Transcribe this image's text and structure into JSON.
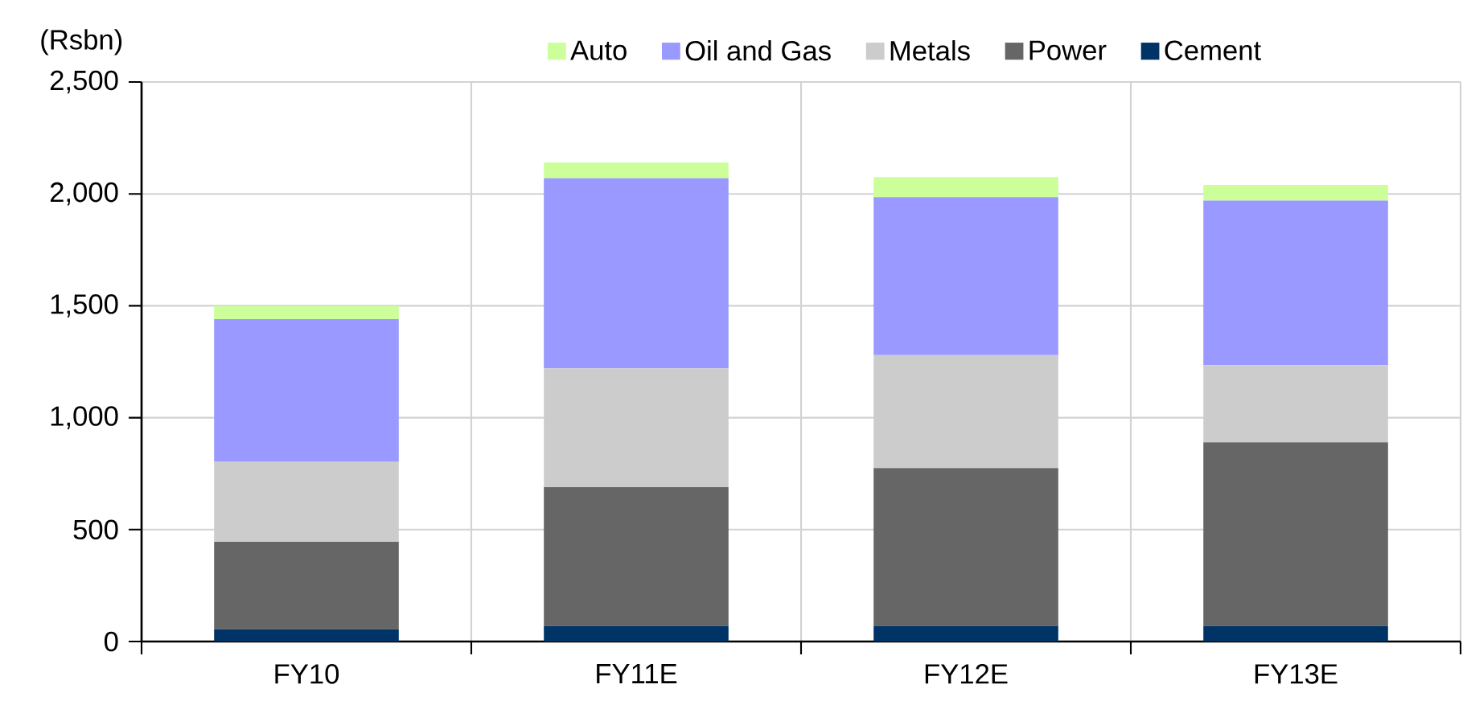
{
  "chart_data": {
    "type": "bar",
    "stacked": true,
    "ylabel": "(Rsbn)",
    "categories": [
      "FY10",
      "FY11E",
      "FY12E",
      "FY13E"
    ],
    "series": [
      {
        "name": "Cement",
        "color": "#003366",
        "values": [
          55,
          70,
          70,
          70
        ]
      },
      {
        "name": "Power",
        "color": "#666666",
        "values": [
          390,
          620,
          705,
          820
        ]
      },
      {
        "name": "Metals",
        "color": "#cccccc",
        "values": [
          360,
          530,
          505,
          345
        ]
      },
      {
        "name": "Oil and Gas",
        "color": "#9999ff",
        "values": [
          635,
          850,
          705,
          735
        ]
      },
      {
        "name": "Auto",
        "color": "#ccff99",
        "values": [
          60,
          70,
          90,
          70
        ]
      }
    ],
    "ylim": [
      0,
      2500
    ],
    "yticks": [
      0,
      500,
      {
        "value": 1000,
        "label": "1,000"
      },
      {
        "value": 1500,
        "label": "1,500"
      },
      {
        "value": 2000,
        "label": "2,000"
      },
      {
        "value": 2500,
        "label": "2,500"
      }
    ],
    "grid": true,
    "legend": "top"
  }
}
